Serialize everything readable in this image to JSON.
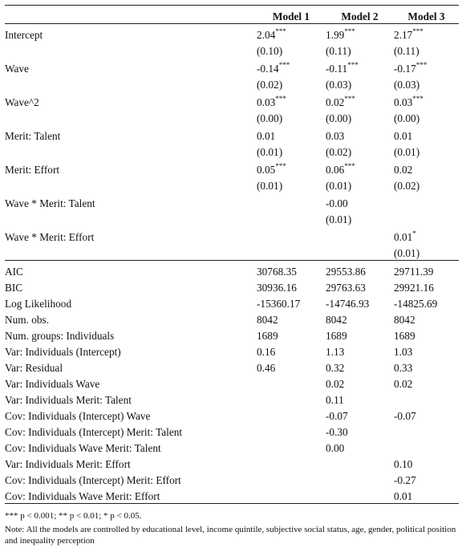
{
  "header": {
    "empty": "",
    "models": [
      "Model 1",
      "Model 2",
      "Model 3"
    ]
  },
  "coefficients": [
    {
      "label": "Intercept",
      "est": [
        {
          "v": "2.04",
          "s": "***"
        },
        {
          "v": "1.99",
          "s": "***"
        },
        {
          "v": "2.17",
          "s": "***"
        }
      ],
      "se": [
        "(0.10)",
        "(0.11)",
        "(0.11)"
      ]
    },
    {
      "label": "Wave",
      "est": [
        {
          "v": "-0.14",
          "s": "***"
        },
        {
          "v": "-0.11",
          "s": "***"
        },
        {
          "v": "-0.17",
          "s": "***"
        }
      ],
      "se": [
        "(0.02)",
        "(0.03)",
        "(0.03)"
      ]
    },
    {
      "label": "Wave^2",
      "est": [
        {
          "v": "0.03",
          "s": "***"
        },
        {
          "v": "0.02",
          "s": "***"
        },
        {
          "v": "0.03",
          "s": "***"
        }
      ],
      "se": [
        "(0.00)",
        "(0.00)",
        "(0.00)"
      ]
    },
    {
      "label": "Merit: Talent",
      "est": [
        {
          "v": "0.01",
          "s": ""
        },
        {
          "v": "0.03",
          "s": ""
        },
        {
          "v": "0.01",
          "s": ""
        }
      ],
      "se": [
        "(0.01)",
        "(0.02)",
        "(0.01)"
      ]
    },
    {
      "label": "Merit: Effort",
      "est": [
        {
          "v": "0.05",
          "s": "***"
        },
        {
          "v": "0.06",
          "s": "***"
        },
        {
          "v": "0.02",
          "s": ""
        }
      ],
      "se": [
        "(0.01)",
        "(0.01)",
        "(0.02)"
      ]
    },
    {
      "label": "Wave * Merit: Talent",
      "est": [
        {
          "v": "",
          "s": ""
        },
        {
          "v": "-0.00",
          "s": ""
        },
        {
          "v": "",
          "s": ""
        }
      ],
      "se": [
        "",
        "(0.01)",
        ""
      ]
    },
    {
      "label": "Wave * Merit: Effort",
      "est": [
        {
          "v": "",
          "s": ""
        },
        {
          "v": "",
          "s": ""
        },
        {
          "v": "0.01",
          "s": "*"
        }
      ],
      "se": [
        "",
        "",
        "(0.01)"
      ]
    }
  ],
  "gof": [
    {
      "label": "AIC",
      "vals": [
        "30768.35",
        "29553.86",
        "29711.39"
      ]
    },
    {
      "label": "BIC",
      "vals": [
        "30936.16",
        "29763.63",
        "29921.16"
      ]
    },
    {
      "label": "Log Likelihood",
      "vals": [
        "-15360.17",
        "-14746.93",
        "-14825.69"
      ]
    },
    {
      "label": "Num. obs.",
      "vals": [
        "8042",
        "8042",
        "8042"
      ]
    },
    {
      "label": "Num. groups: Individuals",
      "vals": [
        "1689",
        "1689",
        "1689"
      ]
    },
    {
      "label": "Var: Individuals (Intercept)",
      "vals": [
        "0.16",
        "1.13",
        "1.03"
      ]
    },
    {
      "label": "Var: Residual",
      "vals": [
        "0.46",
        "0.32",
        "0.33"
      ]
    },
    {
      "label": "Var: Individuals Wave",
      "vals": [
        "",
        "0.02",
        "0.02"
      ]
    },
    {
      "label": "Var: Individuals Merit: Talent",
      "vals": [
        "",
        "0.11",
        ""
      ]
    },
    {
      "label": "Cov: Individuals (Intercept) Wave",
      "vals": [
        "",
        "-0.07",
        "-0.07"
      ]
    },
    {
      "label": "Cov: Individuals (Intercept) Merit: Talent",
      "vals": [
        "",
        "-0.30",
        ""
      ]
    },
    {
      "label": "Cov: Individuals Wave Merit: Talent",
      "vals": [
        "",
        "0.00",
        ""
      ]
    },
    {
      "label": "Var: Individuals Merit: Effort",
      "vals": [
        "",
        "",
        "0.10"
      ]
    },
    {
      "label": "Cov: Individuals (Intercept) Merit: Effort",
      "vals": [
        "",
        "",
        "-0.27"
      ]
    },
    {
      "label": "Cov: Individuals Wave Merit: Effort",
      "vals": [
        "",
        "",
        "0.01"
      ]
    }
  ],
  "notes": {
    "significance": "*** p < 0.001; ** p < 0.01; * p < 0.05.",
    "note": "Note: All the models are controlled by educational level, income quintile, subjective social status, age, gender, political position and inequality perception"
  }
}
